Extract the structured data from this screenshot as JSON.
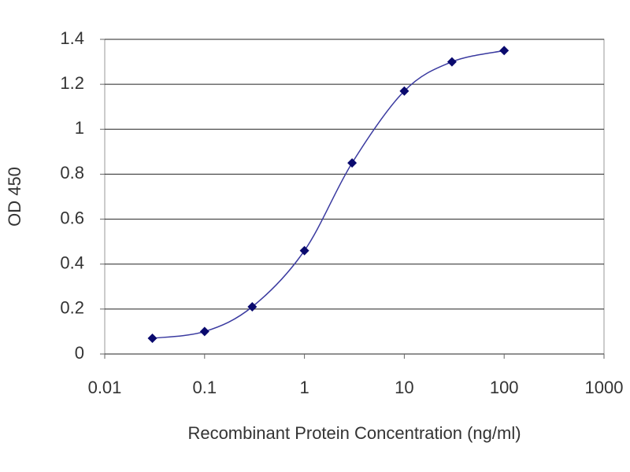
{
  "chart_data": {
    "type": "line",
    "x_label": "Recombinant Protein Concentration (ng/ml)",
    "y_label": "OD 450",
    "x": [
      0.03,
      0.1,
      0.3,
      1,
      3,
      10,
      30,
      100
    ],
    "values": [
      0.07,
      0.1,
      0.21,
      0.46,
      0.85,
      1.17,
      1.3,
      1.35
    ],
    "color": "#3a3aa0",
    "marker_color": "#0a0a6e",
    "xscale": "log",
    "xlim": [
      0.01,
      1000
    ],
    "xticks": [
      0.01,
      0.1,
      1,
      10,
      100,
      1000
    ],
    "ylim": [
      0,
      1.4
    ],
    "yticks": [
      0,
      0.2,
      0.4,
      0.6,
      0.8,
      1,
      1.2,
      1.4
    ],
    "grid": true
  }
}
